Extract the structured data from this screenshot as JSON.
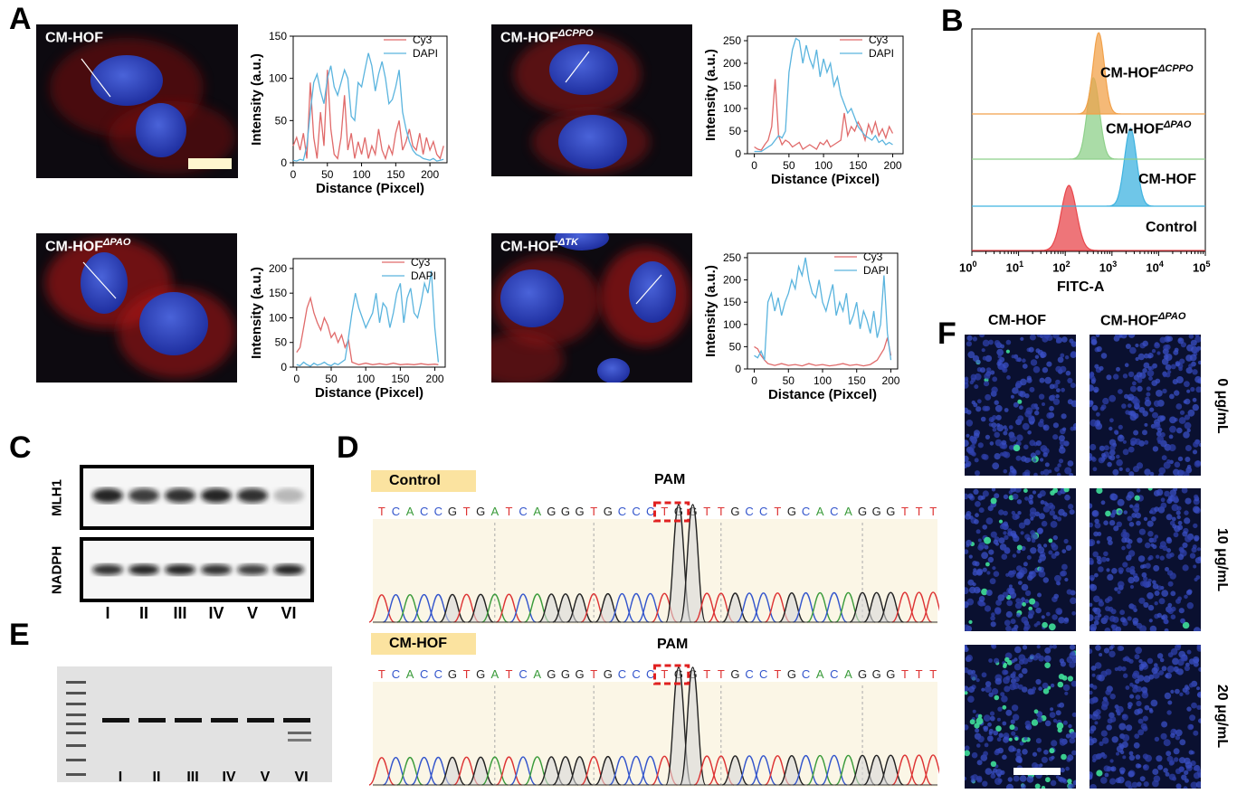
{
  "panels": {
    "A": "A",
    "B": "B",
    "C": "C",
    "D": "D",
    "E": "E",
    "F": "F"
  },
  "panelA": {
    "images": [
      {
        "title": "CM-HOF",
        "sup": ""
      },
      {
        "title": "CM-HOF",
        "sup": "ΔCPPO"
      },
      {
        "title": "CM-HOF",
        "sup": "ΔPAO"
      },
      {
        "title": "CM-HOF",
        "sup": "ΔTK"
      }
    ],
    "xlabel": "Distance (Pixcel)",
    "ylabel": "Intensity (a.u.)",
    "legend": [
      "Cy3",
      "DAPI"
    ]
  },
  "colors": {
    "cy3": "#e06a6a",
    "dapi": "#5ab4de",
    "orange": "#f2a14a",
    "green": "#8ed08a",
    "blue": "#3fb3e0",
    "red": "#e8474c",
    "seq_label_bg": "#fbe3a0",
    "A": "#3a9b3a",
    "C": "#3355cc",
    "G": "#222222",
    "T": "#dd3333"
  },
  "chart_data": [
    {
      "type": "line",
      "title": "CM-HOF",
      "xlabel": "Distance (Pixcel)",
      "ylabel": "Intensity (a.u.)",
      "xlim": [
        0,
        225
      ],
      "ylim": [
        0,
        150
      ],
      "xticks": [
        0,
        50,
        100,
        150,
        200
      ],
      "yticks": [
        0,
        50,
        100,
        150
      ],
      "series": [
        {
          "name": "Cy3",
          "x": [
            0,
            5,
            10,
            15,
            20,
            25,
            30,
            35,
            40,
            45,
            50,
            55,
            60,
            65,
            70,
            75,
            80,
            85,
            90,
            95,
            100,
            105,
            110,
            115,
            120,
            125,
            130,
            135,
            140,
            145,
            150,
            155,
            160,
            165,
            170,
            175,
            180,
            185,
            190,
            195,
            200,
            205,
            210,
            215,
            220
          ],
          "y": [
            20,
            30,
            15,
            35,
            5,
            95,
            30,
            5,
            60,
            20,
            110,
            40,
            10,
            5,
            30,
            80,
            15,
            35,
            5,
            25,
            10,
            30,
            5,
            20,
            10,
            40,
            15,
            5,
            20,
            10,
            35,
            50,
            15,
            25,
            40,
            20,
            15,
            35,
            10,
            30,
            15,
            25,
            10,
            5,
            20
          ]
        },
        {
          "name": "DAPI",
          "x": [
            0,
            5,
            10,
            15,
            20,
            25,
            30,
            35,
            40,
            45,
            50,
            55,
            60,
            65,
            70,
            75,
            80,
            85,
            90,
            95,
            100,
            105,
            110,
            115,
            120,
            125,
            130,
            135,
            140,
            145,
            150,
            155,
            160,
            165,
            170,
            175,
            180,
            185,
            190,
            195,
            200,
            205,
            210,
            215,
            220
          ],
          "y": [
            3,
            2,
            4,
            3,
            20,
            60,
            95,
            105,
            85,
            70,
            100,
            115,
            90,
            80,
            95,
            110,
            100,
            55,
            50,
            95,
            90,
            110,
            130,
            115,
            85,
            105,
            120,
            100,
            70,
            75,
            90,
            110,
            60,
            40,
            25,
            15,
            10,
            8,
            5,
            4,
            3,
            5,
            2,
            3,
            4
          ]
        }
      ]
    },
    {
      "type": "line",
      "title": "CM-HOF ΔCPPO",
      "xlabel": "Distance (Pixcel)",
      "ylabel": "Intensity (a.u.)",
      "xlim": [
        -10,
        215
      ],
      "ylim": [
        0,
        260
      ],
      "xticks": [
        0,
        50,
        100,
        150,
        200
      ],
      "yticks": [
        0,
        50,
        100,
        150,
        200,
        250
      ],
      "series": [
        {
          "name": "Cy3",
          "x": [
            0,
            5,
            10,
            15,
            20,
            25,
            30,
            35,
            40,
            45,
            50,
            55,
            60,
            65,
            70,
            75,
            80,
            85,
            90,
            95,
            100,
            105,
            110,
            115,
            120,
            125,
            130,
            135,
            140,
            145,
            150,
            155,
            160,
            165,
            170,
            175,
            180,
            185,
            190,
            195,
            200
          ],
          "y": [
            15,
            10,
            8,
            20,
            30,
            60,
            165,
            40,
            20,
            30,
            25,
            15,
            20,
            25,
            10,
            15,
            20,
            15,
            10,
            25,
            20,
            30,
            15,
            20,
            25,
            30,
            90,
            40,
            60,
            50,
            70,
            55,
            30,
            65,
            45,
            70,
            40,
            55,
            35,
            60,
            45
          ]
        },
        {
          "name": "DAPI",
          "x": [
            0,
            5,
            10,
            15,
            20,
            25,
            30,
            35,
            40,
            45,
            50,
            55,
            60,
            65,
            70,
            75,
            80,
            85,
            90,
            95,
            100,
            105,
            110,
            115,
            120,
            125,
            130,
            135,
            140,
            145,
            150,
            155,
            160,
            165,
            170,
            175,
            180,
            185,
            190,
            195,
            200
          ],
          "y": [
            5,
            5,
            5,
            10,
            15,
            20,
            30,
            40,
            35,
            50,
            180,
            230,
            255,
            250,
            200,
            240,
            210,
            190,
            230,
            170,
            210,
            180,
            200,
            150,
            170,
            130,
            110,
            90,
            100,
            80,
            60,
            50,
            40,
            35,
            30,
            40,
            25,
            30,
            20,
            25,
            20
          ]
        }
      ]
    },
    {
      "type": "line",
      "title": "CM-HOF ΔPAO",
      "xlabel": "Distance (Pixcel)",
      "ylabel": "Intensity (a.u.)",
      "xlim": [
        -5,
        215
      ],
      "ylim": [
        0,
        220
      ],
      "xticks": [
        0,
        50,
        100,
        150,
        200
      ],
      "yticks": [
        0,
        50,
        100,
        150,
        200
      ],
      "series": [
        {
          "name": "Cy3",
          "x": [
            0,
            5,
            10,
            15,
            20,
            25,
            30,
            35,
            40,
            45,
            50,
            55,
            60,
            65,
            70,
            75,
            80,
            90,
            100,
            110,
            120,
            130,
            140,
            150,
            160,
            170,
            180,
            190,
            200,
            205
          ],
          "y": [
            30,
            40,
            80,
            120,
            140,
            110,
            90,
            75,
            100,
            85,
            60,
            70,
            50,
            65,
            40,
            55,
            10,
            5,
            8,
            5,
            7,
            5,
            8,
            5,
            6,
            5,
            7,
            5,
            6,
            5
          ]
        },
        {
          "name": "DAPI",
          "x": [
            0,
            5,
            10,
            15,
            20,
            25,
            30,
            35,
            40,
            45,
            50,
            55,
            60,
            65,
            70,
            75,
            80,
            85,
            90,
            95,
            100,
            105,
            110,
            115,
            120,
            125,
            130,
            135,
            140,
            145,
            150,
            155,
            160,
            165,
            170,
            175,
            180,
            185,
            190,
            195,
            200,
            205
          ],
          "y": [
            5,
            3,
            10,
            5,
            2,
            8,
            4,
            6,
            10,
            5,
            3,
            8,
            5,
            10,
            15,
            60,
            110,
            150,
            120,
            100,
            80,
            95,
            110,
            150,
            90,
            130,
            120,
            80,
            110,
            150,
            170,
            90,
            140,
            160,
            110,
            100,
            130,
            170,
            150,
            195,
            80,
            10
          ]
        }
      ]
    },
    {
      "type": "line",
      "title": "CM-HOF ΔTK",
      "xlabel": "Distance (Pixcel)",
      "ylabel": "Intensity (a.u.)",
      "xlim": [
        -10,
        210
      ],
      "ylim": [
        0,
        260
      ],
      "xticks": [
        0,
        50,
        100,
        150,
        200
      ],
      "yticks": [
        0,
        50,
        100,
        150,
        200,
        250
      ],
      "series": [
        {
          "name": "Cy3",
          "x": [
            0,
            5,
            10,
            15,
            20,
            25,
            30,
            40,
            50,
            60,
            70,
            80,
            90,
            100,
            110,
            120,
            130,
            140,
            150,
            160,
            170,
            180,
            190,
            195,
            200
          ],
          "y": [
            50,
            45,
            30,
            20,
            12,
            10,
            8,
            12,
            8,
            10,
            7,
            12,
            8,
            10,
            7,
            9,
            12,
            8,
            10,
            7,
            10,
            20,
            45,
            70,
            30
          ]
        },
        {
          "name": "DAPI",
          "x": [
            0,
            5,
            10,
            15,
            20,
            25,
            30,
            35,
            40,
            45,
            50,
            55,
            60,
            65,
            70,
            75,
            80,
            85,
            90,
            95,
            100,
            105,
            110,
            115,
            120,
            125,
            130,
            135,
            140,
            145,
            150,
            155,
            160,
            165,
            170,
            175,
            180,
            185,
            190,
            195,
            200
          ],
          "y": [
            30,
            25,
            40,
            20,
            150,
            170,
            130,
            160,
            120,
            150,
            170,
            200,
            180,
            230,
            210,
            250,
            200,
            170,
            160,
            200,
            150,
            130,
            160,
            190,
            120,
            150,
            130,
            170,
            100,
            120,
            150,
            90,
            130,
            110,
            80,
            130,
            70,
            100,
            210,
            80,
            20
          ]
        }
      ]
    },
    {
      "type": "area",
      "title": "",
      "xlabel": "FITC-A",
      "ylabel": "",
      "xscale": "log",
      "xlim": [
        1,
        100000
      ],
      "xticks": [
        "10^0",
        "10^1",
        "10^2",
        "10^3",
        "10^4",
        "10^5"
      ],
      "series": [
        {
          "name": "Control",
          "peak": 120,
          "color": "#e8474c"
        },
        {
          "name": "CM-HOF",
          "peak": 2500,
          "color": "#3fb3e0"
        },
        {
          "name": "CM-HOF ΔPAO",
          "peak": 400,
          "color": "#8ed08a"
        },
        {
          "name": "CM-HOF ΔCPPO",
          "peak": 520,
          "color": "#f2a14a"
        }
      ]
    }
  ],
  "panelB": {
    "labels": [
      {
        "main": "CM-HOF",
        "sup": "ΔCPPO"
      },
      {
        "main": "CM-HOF",
        "sup": "ΔPAO"
      },
      {
        "main": "CM-HOF",
        "sup": ""
      },
      {
        "main": "Control",
        "sup": ""
      }
    ],
    "xlabel": "FITC-A",
    "ticks": [
      "10",
      "10",
      "10",
      "10",
      "10",
      "10"
    ],
    "tick_exps": [
      "0",
      "1",
      "2",
      "3",
      "4",
      "5"
    ]
  },
  "panelC": {
    "row_labels": [
      "MLH1",
      "NADPH"
    ],
    "lanes": [
      "I",
      "II",
      "III",
      "IV",
      "V",
      "VI"
    ],
    "mlh1_intensity": [
      0.9,
      0.8,
      0.85,
      0.9,
      0.85,
      0.25
    ],
    "nadph_intensity": [
      0.85,
      0.9,
      0.9,
      0.85,
      0.8,
      0.9
    ]
  },
  "panelD": {
    "rows": [
      {
        "label": "Control",
        "pam": "PAM",
        "sequence": "TCACCGTGATCAGGGTGCCCTGGTTGCCTGCACAGGGTTT"
      },
      {
        "label": "CM-HOF",
        "pam": "PAM",
        "sequence": "TCACCGTGATCAGGGTGCCCTGGTTGCCTGCACAGGGTTT"
      }
    ]
  },
  "panelE": {
    "lanes": [
      "I",
      "II",
      "III",
      "IV",
      "V",
      "VI"
    ]
  },
  "panelF": {
    "columns": [
      {
        "main": "CM-HOF",
        "sup": ""
      },
      {
        "main": "CM-HOF",
        "sup": "ΔPAO"
      }
    ],
    "rows": [
      "0 μg/mL",
      "10 μg/mL",
      "20 μg/mL"
    ],
    "green_density": [
      [
        0.02,
        0.0
      ],
      [
        0.08,
        0.01
      ],
      [
        0.18,
        0.01
      ]
    ]
  }
}
